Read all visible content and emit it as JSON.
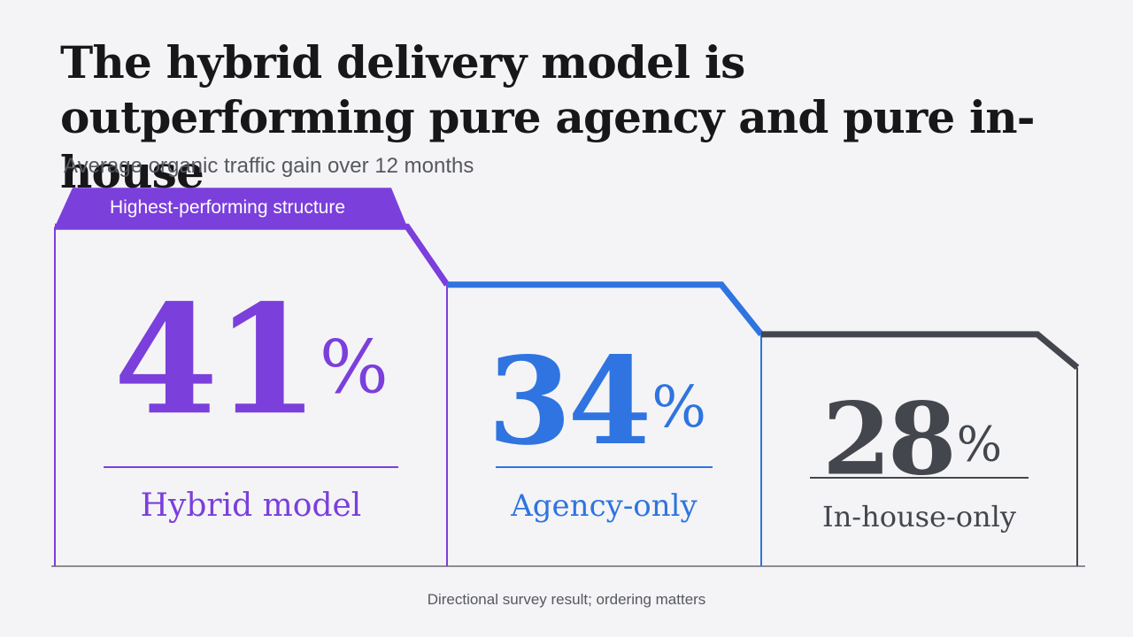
{
  "title": "The hybrid delivery model is outperforming pure agency and pure in-house",
  "subtitle": "Average organic traffic gain over 12 months",
  "badge": "Highest-performing structure",
  "footnote": "Directional survey result; ordering matters",
  "colors": {
    "hybrid": "#7b3fdc",
    "agency": "#2f74e0",
    "inhouse": "#43474d",
    "baseline": "#8a8d92"
  },
  "chart_data": {
    "type": "bar",
    "categories": [
      "Hybrid model",
      "Agency-only",
      "In-house-only"
    ],
    "values": [
      41,
      34,
      28
    ],
    "value_labels": [
      "41%",
      "34%",
      "28%"
    ],
    "unit": "%",
    "title": "The hybrid delivery model is outperforming pure agency and pure in-house",
    "subtitle": "Average organic traffic gain over 12 months",
    "highlight": {
      "category": "Hybrid model",
      "label": "Highest-performing structure"
    },
    "grid": false
  }
}
